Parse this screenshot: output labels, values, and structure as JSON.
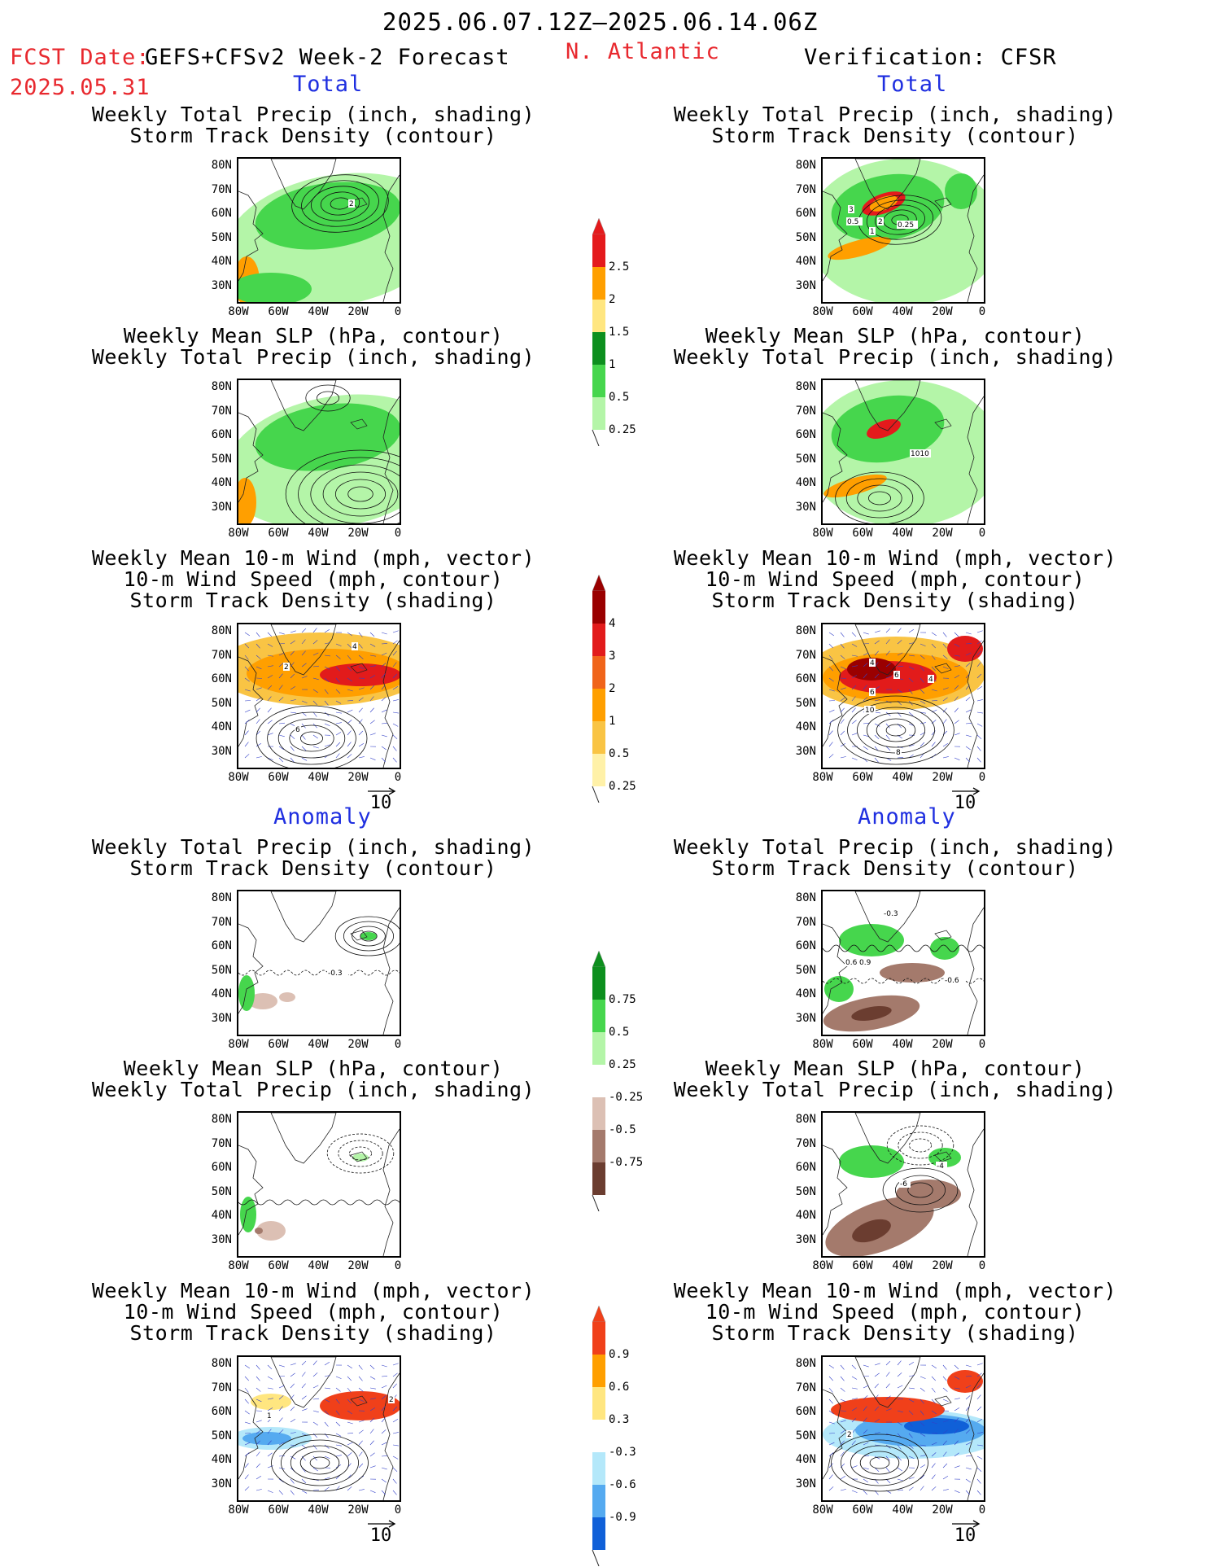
{
  "header": {
    "period": "2025.06.07.12Z–2025.06.14.06Z",
    "fcst_date_label": "FCST Date:",
    "fcst_model": "GEFS+CFSv2 Week-2 Forecast",
    "fcst_date": "2025.05.31",
    "region": "N. Atlantic",
    "verification": "Verification: CFSR"
  },
  "sections": {
    "total_label": "Total",
    "anomaly_label": "Anomaly"
  },
  "titles": {
    "precip_track": "Weekly Total Precip (inch, shading)\nStorm Track Density (contour)",
    "slp_precip": "Weekly Mean SLP (hPa, contour)\nWeekly Total Precip (inch, shading)",
    "wind_track": "Weekly Mean 10-m Wind (mph, vector)\n10-m Wind Speed (mph, contour)\nStorm Track Density (shading)"
  },
  "axes": {
    "lat": [
      "80N",
      "70N",
      "60N",
      "50N",
      "40N",
      "30N"
    ],
    "lon": [
      "80W",
      "60W",
      "40W",
      "20W",
      "0"
    ]
  },
  "vector_ref": "10",
  "colorbars": {
    "precip_total": {
      "labels": [
        "2.5",
        "2",
        "1.5",
        "1",
        "0.5",
        "0.25"
      ],
      "colors": [
        "#e41a1c",
        "#ff9f00",
        "#ffe680",
        "#0d8f1e",
        "#46d64d",
        "#b4f5a8"
      ]
    },
    "track_total": {
      "labels": [
        "4",
        "3",
        "2",
        "1",
        "0.5",
        "0.25"
      ],
      "colors": [
        "#9a0000",
        "#e21b1b",
        "#f0641a",
        "#ff9f00",
        "#f9c444",
        "#fff1a8"
      ]
    },
    "precip_anom": {
      "labels": [
        "0.75",
        "0.5",
        "0.25",
        "-0.25",
        "-0.5",
        "-0.75"
      ],
      "colors": [
        "#0d8f1e",
        "#46d64d",
        "#b4f5a8",
        "#ffffff",
        "#dcc0b4",
        "#a47a6c",
        "#6b3d30"
      ]
    },
    "track_anom": {
      "labels": [
        "0.9",
        "0.6",
        "0.3",
        "-0.3",
        "-0.6",
        "-0.9"
      ],
      "colors": [
        "#f0401a",
        "#ff9f00",
        "#ffe680",
        "#ffffff",
        "#b4e8fa",
        "#55aaf0",
        "#1060d8"
      ]
    }
  },
  "contour_labels": {
    "fc_total_1": [
      "2"
    ],
    "ob_total_1": [
      "3",
      "0.5",
      "2",
      "1",
      "0.25"
    ],
    "ob_total_2": [
      "1010"
    ],
    "fc_total_3": [
      "2",
      "4",
      "6"
    ],
    "ob_total_3": [
      "4",
      "6",
      "4",
      "6",
      "10",
      "8"
    ],
    "fc_anom_1": [
      "-0.3"
    ],
    "ob_anom_1": [
      "-0.3",
      "0.6",
      "0.9",
      "-0.6"
    ],
    "ob_anom_2": [
      "-6",
      "-4"
    ],
    "fc_anom_3": [
      "1",
      "2"
    ],
    "ob_anom_3": [
      "2"
    ]
  }
}
